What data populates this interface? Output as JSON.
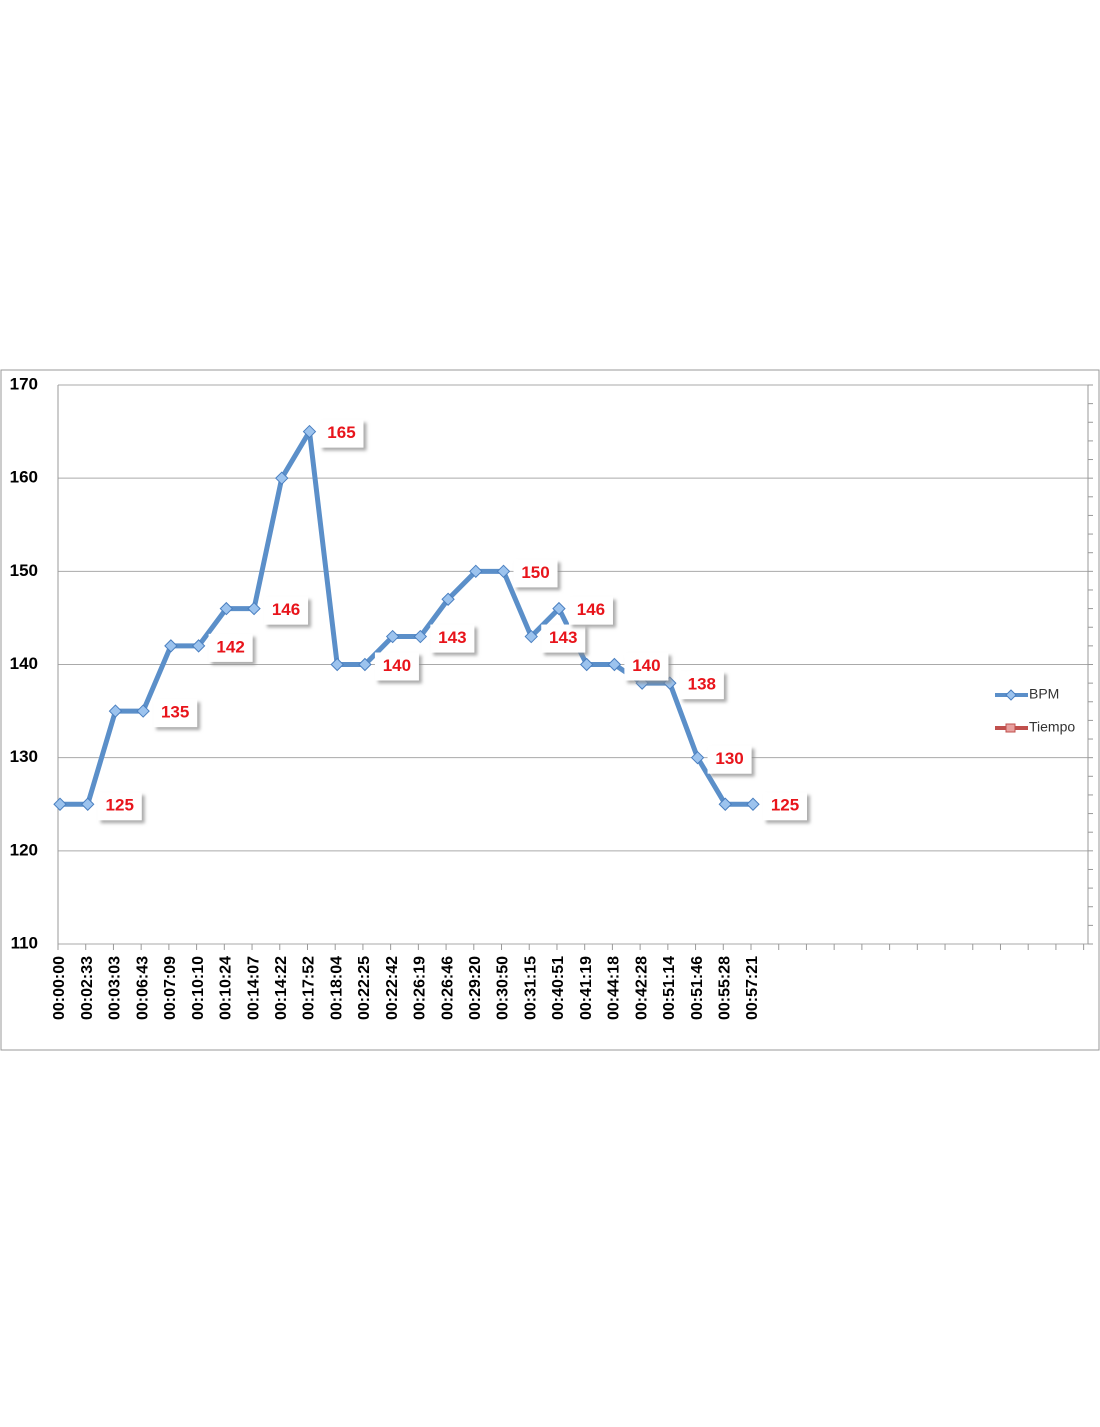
{
  "chart_data": {
    "type": "line",
    "categories": [
      "00:00:00",
      "00:02:33",
      "00:03:03",
      "00:06:43",
      "00:07:09",
      "00:10:10",
      "00:10:24",
      "00:14:07",
      "00:14:22",
      "00:17:52",
      "00:18:04",
      "00:22:25",
      "00:22:42",
      "00:26:19",
      "00:26:46",
      "00:29:20",
      "00:30:50",
      "00:31:15",
      "00:40:51",
      "00:41:19",
      "00:44:18",
      "00:42:28",
      "00:51:14",
      "00:51:46",
      "00:55:28",
      "00:57:21"
    ],
    "series": [
      {
        "name": "BPM",
        "color": "#5b8fc9",
        "values": [
          125,
          125,
          135,
          135,
          142,
          142,
          146,
          146,
          160,
          165,
          140,
          140,
          143,
          143,
          147,
          150,
          150,
          143,
          146,
          140,
          140,
          138,
          138,
          130,
          125,
          125
        ]
      },
      {
        "name": "Tiempo",
        "color": "#c0504d",
        "values": [
          null,
          null,
          null,
          null,
          null,
          null,
          null,
          null,
          null,
          null,
          null,
          null,
          null,
          null,
          null,
          null,
          null,
          null,
          null,
          null,
          null,
          null,
          null,
          null,
          null,
          null
        ]
      }
    ],
    "data_labels": [
      1,
      3,
      5,
      7,
      9,
      11,
      13,
      16,
      17,
      18,
      20,
      22,
      23,
      25
    ],
    "ylim": [
      110,
      170
    ],
    "yticks": [
      110,
      120,
      130,
      140,
      150,
      160,
      170
    ],
    "grid": true,
    "legend": "right"
  }
}
